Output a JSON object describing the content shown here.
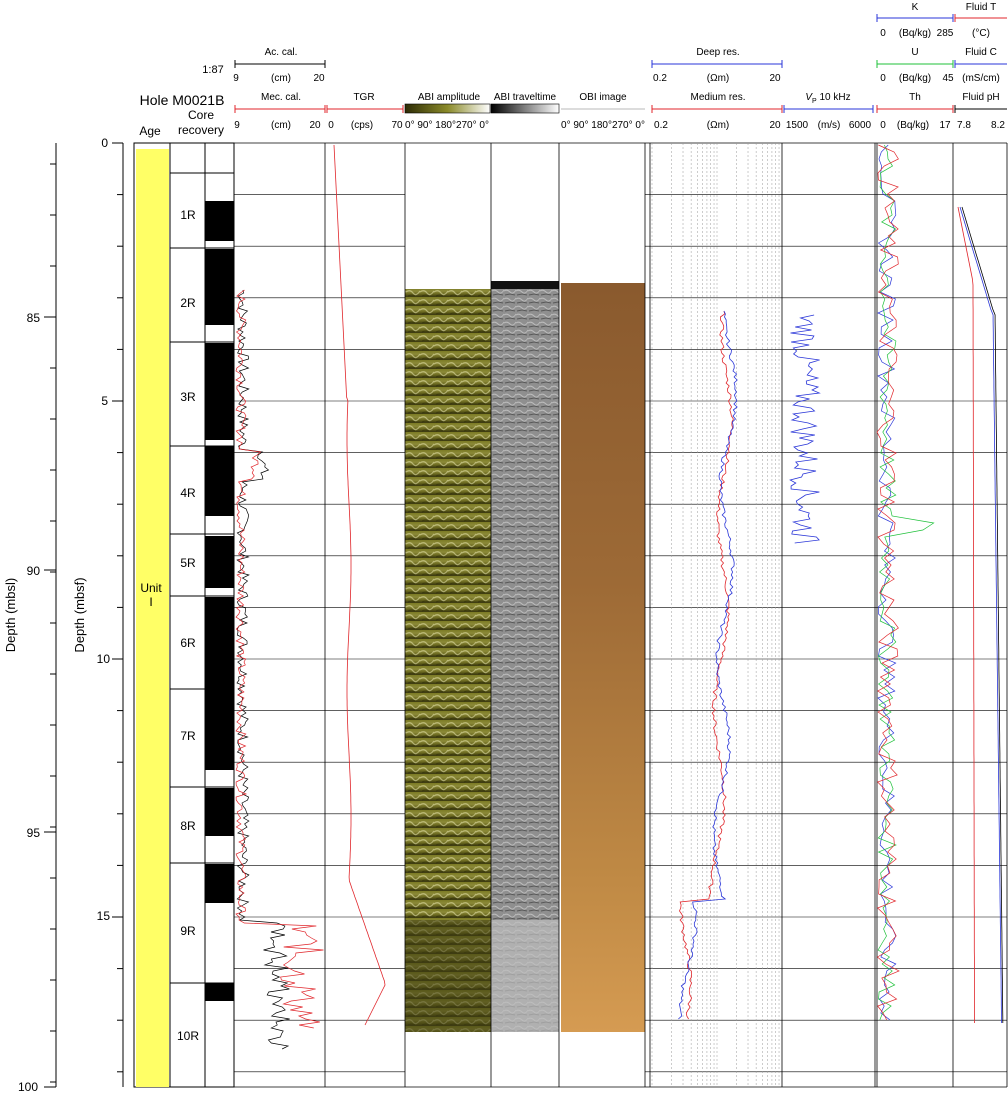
{
  "hole_title": "Hole M0021B",
  "scale_label": "1:87",
  "age_header": "Age",
  "core_recovery_header": [
    "Core",
    "recovery"
  ],
  "unit_label": [
    "Unit",
    "I"
  ],
  "mbsl_axis": {
    "label": "Depth (mbsl)",
    "ticks": [
      "85",
      "90",
      "95",
      "100"
    ]
  },
  "mbsf_axis": {
    "label": "Depth (mbsf)",
    "ticks": [
      "0",
      "5",
      "10",
      "15"
    ]
  },
  "cores": [
    "1R",
    "2R",
    "3R",
    "4R",
    "5R",
    "6R",
    "7R",
    "8R",
    "9R",
    "10R"
  ],
  "headers": {
    "ac_cal": {
      "name": "Ac. cal.",
      "min": "9",
      "unit": "(cm)",
      "max": "20"
    },
    "mec_cal": {
      "name": "Mec. cal.",
      "min": "9",
      "unit": "(cm)",
      "max": "20"
    },
    "tgr": {
      "name": "TGR",
      "min": "0",
      "unit": "(cps)",
      "max": "70"
    },
    "abi_amplitude": {
      "name": "ABI amplitude",
      "ticks": "0° 90° 180°270° 0°"
    },
    "abi_traveltime": {
      "name": "ABI traveltime"
    },
    "obi_image": {
      "name": "OBI image",
      "ticks": "0° 90° 180°270° 0°"
    },
    "deep_res": {
      "name": "Deep res.",
      "min": "0.2",
      "unit": "(Ωm)",
      "max": "20"
    },
    "medium_res": {
      "name": "Medium res.",
      "min": "0.2",
      "unit": "(Ωm)",
      "max": "20"
    },
    "vp": {
      "name": "V",
      "sub": "P",
      "suffix": " 10 kHz",
      "min": "1500",
      "unit": "(m/s)",
      "max": "6000"
    },
    "k": {
      "name": "K",
      "min": "0",
      "unit": "(Bq/kg)",
      "max": "285"
    },
    "u": {
      "name": "U",
      "min": "0",
      "unit": "(Bq/kg)",
      "max": "45"
    },
    "th": {
      "name": "Th",
      "min": "0",
      "unit": "(Bq/kg)",
      "max": "17"
    },
    "fluid_t": {
      "name": "Fluid T",
      "unit": "(°C)"
    },
    "fluid_c": {
      "name": "Fluid C",
      "unit": "(mS/cm)"
    },
    "fluid_ph": {
      "name": "Fluid pH",
      "min": "7.8",
      "max": "8.2"
    }
  },
  "colors": {
    "ac_cal": "#000000",
    "mec_cal": "#e0262b",
    "tgr": "#e0262b",
    "deep_res": "#2a36d8",
    "medium_res": "#e0262b",
    "vp": "#2a36d8",
    "k": "#2a36d8",
    "u": "#1fc13a",
    "th": "#e0262b",
    "fluid_t": "#e0262b",
    "fluid_c": "#2a36d8",
    "fluid_ph": "#000000",
    "age": "#ffff66",
    "abi_amplitude": "#6f6c1a",
    "abi_traveltime": "#8a8a8a",
    "obi_image": "#b5803a"
  }
}
